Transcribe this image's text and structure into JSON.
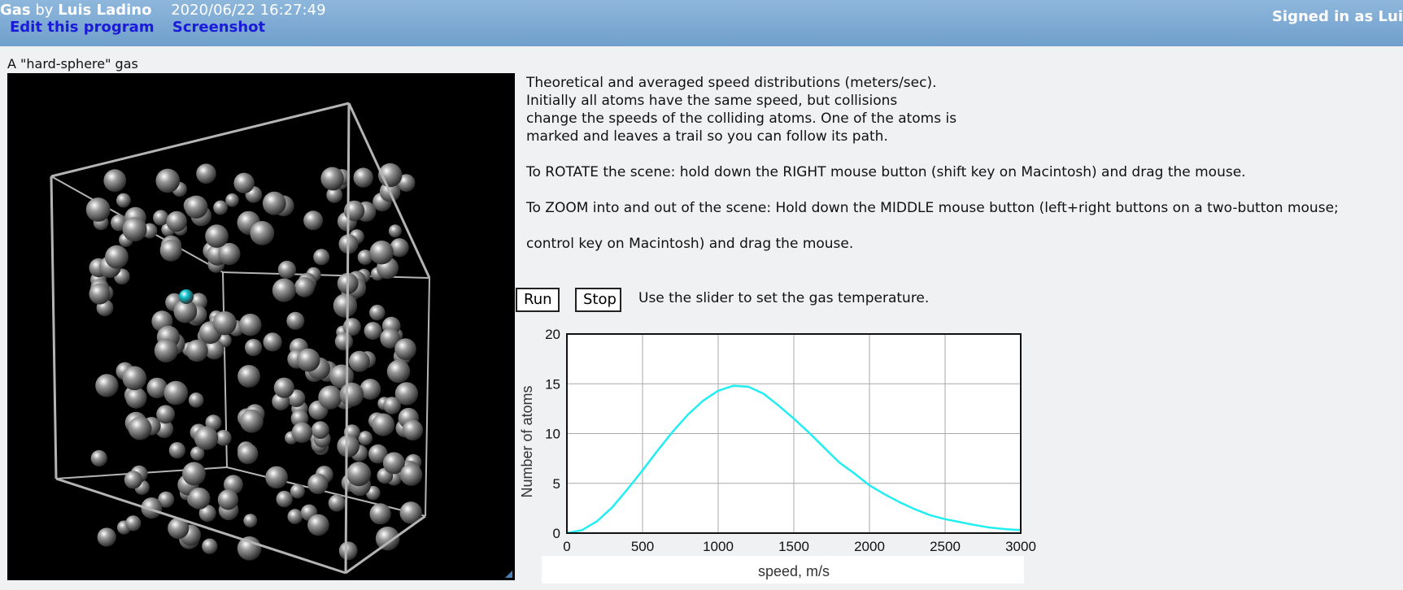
{
  "header": {
    "program_name": "Gas",
    "by": "by",
    "author": "Luis Ladino",
    "timestamp": "2020/06/22 16:27:49",
    "edit_link": "Edit this program",
    "screenshot_link": "Screenshot",
    "signed_in": "Signed in as Lui"
  },
  "canvas": {
    "title": "A \"hard-sphere\" gas",
    "colors": {
      "background": "#000000",
      "atom": "#9a9a9a",
      "marked_atom": "#11c6d0",
      "box": "#b4b4b4"
    }
  },
  "description": {
    "lines": [
      "Theoretical and averaged speed distributions (meters/sec).",
      "Initially all atoms have the same speed, but collisions",
      "change the speeds of the colliding atoms. One of the atoms is",
      "marked and leaves a trail so you can follow its path."
    ],
    "rotate": "To ROTATE the scene: hold down the RIGHT mouse button (shift key on Macintosh) and drag the mouse.",
    "zoom_1": "To ZOOM into and out of the scene: Hold down the MIDDLE mouse button (left+right buttons on a two-button mouse;",
    "zoom_2": "control key on Macintosh) and drag the mouse."
  },
  "controls": {
    "run_label": "Run",
    "stop_label": "Stop",
    "slider_hint": "Use the slider to set the gas temperature."
  },
  "chart_data": {
    "type": "line",
    "title": "",
    "xlabel": "speed, m/s",
    "ylabel": "Number of atoms",
    "xlim": [
      0,
      3000
    ],
    "ylim": [
      0,
      20
    ],
    "xticks": [
      0,
      500,
      1000,
      1500,
      2000,
      2500,
      3000
    ],
    "yticks": [
      0,
      5,
      10,
      15,
      20
    ],
    "grid": true,
    "color": "#22eef2",
    "series": [
      {
        "x": [
          0,
          100,
          200,
          300,
          400,
          500,
          600,
          700,
          800,
          900,
          1000,
          1100,
          1200,
          1300,
          1400,
          1500,
          1600,
          1700,
          1800,
          1900,
          2000,
          2100,
          2200,
          2300,
          2400,
          2500,
          2600,
          2700,
          2800,
          2900,
          3000
        ],
        "y": [
          0,
          0.3,
          1.2,
          2.6,
          4.4,
          6.3,
          8.3,
          10.2,
          11.9,
          13.3,
          14.3,
          14.8,
          14.7,
          14.0,
          12.8,
          11.5,
          10.1,
          8.6,
          7.1,
          6.0,
          4.8,
          3.9,
          3.1,
          2.4,
          1.8,
          1.4,
          1.1,
          0.8,
          0.55,
          0.4,
          0.3
        ]
      }
    ]
  }
}
